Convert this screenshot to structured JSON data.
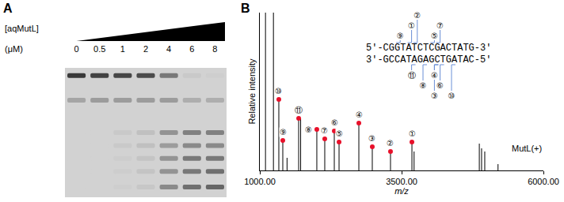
{
  "gel_panel": {
    "label": "A",
    "concentration_title": "[aqMutL]",
    "unit": "(μM)",
    "lanes": [
      0,
      0.5,
      1,
      2,
      4,
      6,
      8
    ],
    "bands": [
      {
        "position": 0.06,
        "intensities": [
          0.85,
          0.8,
          0.78,
          0.75,
          0.5,
          0.05,
          0.02
        ]
      },
      {
        "position": 0.25,
        "intensities": [
          0.25,
          0.3,
          0.3,
          0.3,
          0.3,
          0.2,
          0.2
        ]
      },
      {
        "position": 0.5,
        "intensities": [
          0,
          0,
          0.05,
          0.1,
          0.35,
          0.45,
          0.45
        ]
      },
      {
        "position": 0.6,
        "intensities": [
          0,
          0,
          0.05,
          0.1,
          0.3,
          0.4,
          0.4
        ]
      },
      {
        "position": 0.7,
        "intensities": [
          0,
          0,
          0.03,
          0.08,
          0.35,
          0.5,
          0.5
        ]
      },
      {
        "position": 0.8,
        "intensities": [
          0,
          0,
          0.03,
          0.08,
          0.35,
          0.5,
          0.55
        ]
      },
      {
        "position": 0.92,
        "intensities": [
          0,
          0,
          0.02,
          0.06,
          0.4,
          0.55,
          0.6
        ]
      }
    ]
  },
  "chart_data": {
    "label": "B",
    "type": "bar",
    "x_label": "m/z",
    "y_label": "Relative intensity",
    "xlim": [
      1000,
      6000
    ],
    "xticks": [
      {
        "value": 1000,
        "label": "1000.00"
      },
      {
        "value": 3500,
        "label": "3500.00"
      },
      {
        "value": 6000,
        "label": "6000.00"
      }
    ],
    "ylim": [
      0,
      100
    ],
    "yticks": [],
    "tick_labels": "x",
    "grid": false,
    "series": [
      {
        "type": "bar",
        "color": "#000000",
        "x": [
          1100,
          1240,
          1335,
          1405,
          1480,
          1685,
          1720,
          2005,
          2145,
          2313,
          2397,
          2746,
          2983,
          3304,
          3682,
          3720,
          4870,
          4910,
          4966,
          5200
        ],
        "values": [
          100,
          100,
          45,
          19,
          8,
          33,
          33,
          26,
          20,
          25,
          18,
          30,
          15,
          12,
          18,
          12,
          17,
          14,
          12,
          4
        ]
      },
      {
        "type": "scatter",
        "marker": "circle",
        "color": "#e8102a",
        "x": [
          3682,
          3304,
          2983,
          2746,
          2397,
          2313,
          2145,
          2005,
          1405,
          1335,
          1685
        ],
        "values": [
          18,
          12,
          15,
          30,
          18,
          25,
          20,
          26,
          19,
          45,
          33
        ],
        "labels": [
          "①",
          "②",
          "③",
          "④",
          "⑤",
          "⑥",
          "⑦",
          "⑧",
          "⑨",
          "⑩",
          "⑪"
        ]
      }
    ],
    "annotations": [
      {
        "text": "MutL(+)",
        "x": 6000,
        "y": 10
      }
    ],
    "sequence": {
      "top": "5'-CGGTATCTCGACTATG-3'",
      "bottom": "3'-GCCATAGAGCTGATAC-5'",
      "top_sites": [
        {
          "label": "⑨",
          "after": 2
        },
        {
          "label": "①",
          "after": 4
        },
        {
          "label": "②",
          "after": 5
        },
        {
          "label": "⑤",
          "after": 8
        },
        {
          "label": "⑦",
          "after": 9
        }
      ],
      "bottom_sites": [
        {
          "label": "⑪",
          "after": 4
        },
        {
          "label": "⑧",
          "after": 6
        },
        {
          "label": "③",
          "after": 8
        },
        {
          "label": "④",
          "after": 8
        },
        {
          "label": "⑥",
          "after": 9
        },
        {
          "label": "⑩",
          "after": 11
        }
      ]
    }
  }
}
